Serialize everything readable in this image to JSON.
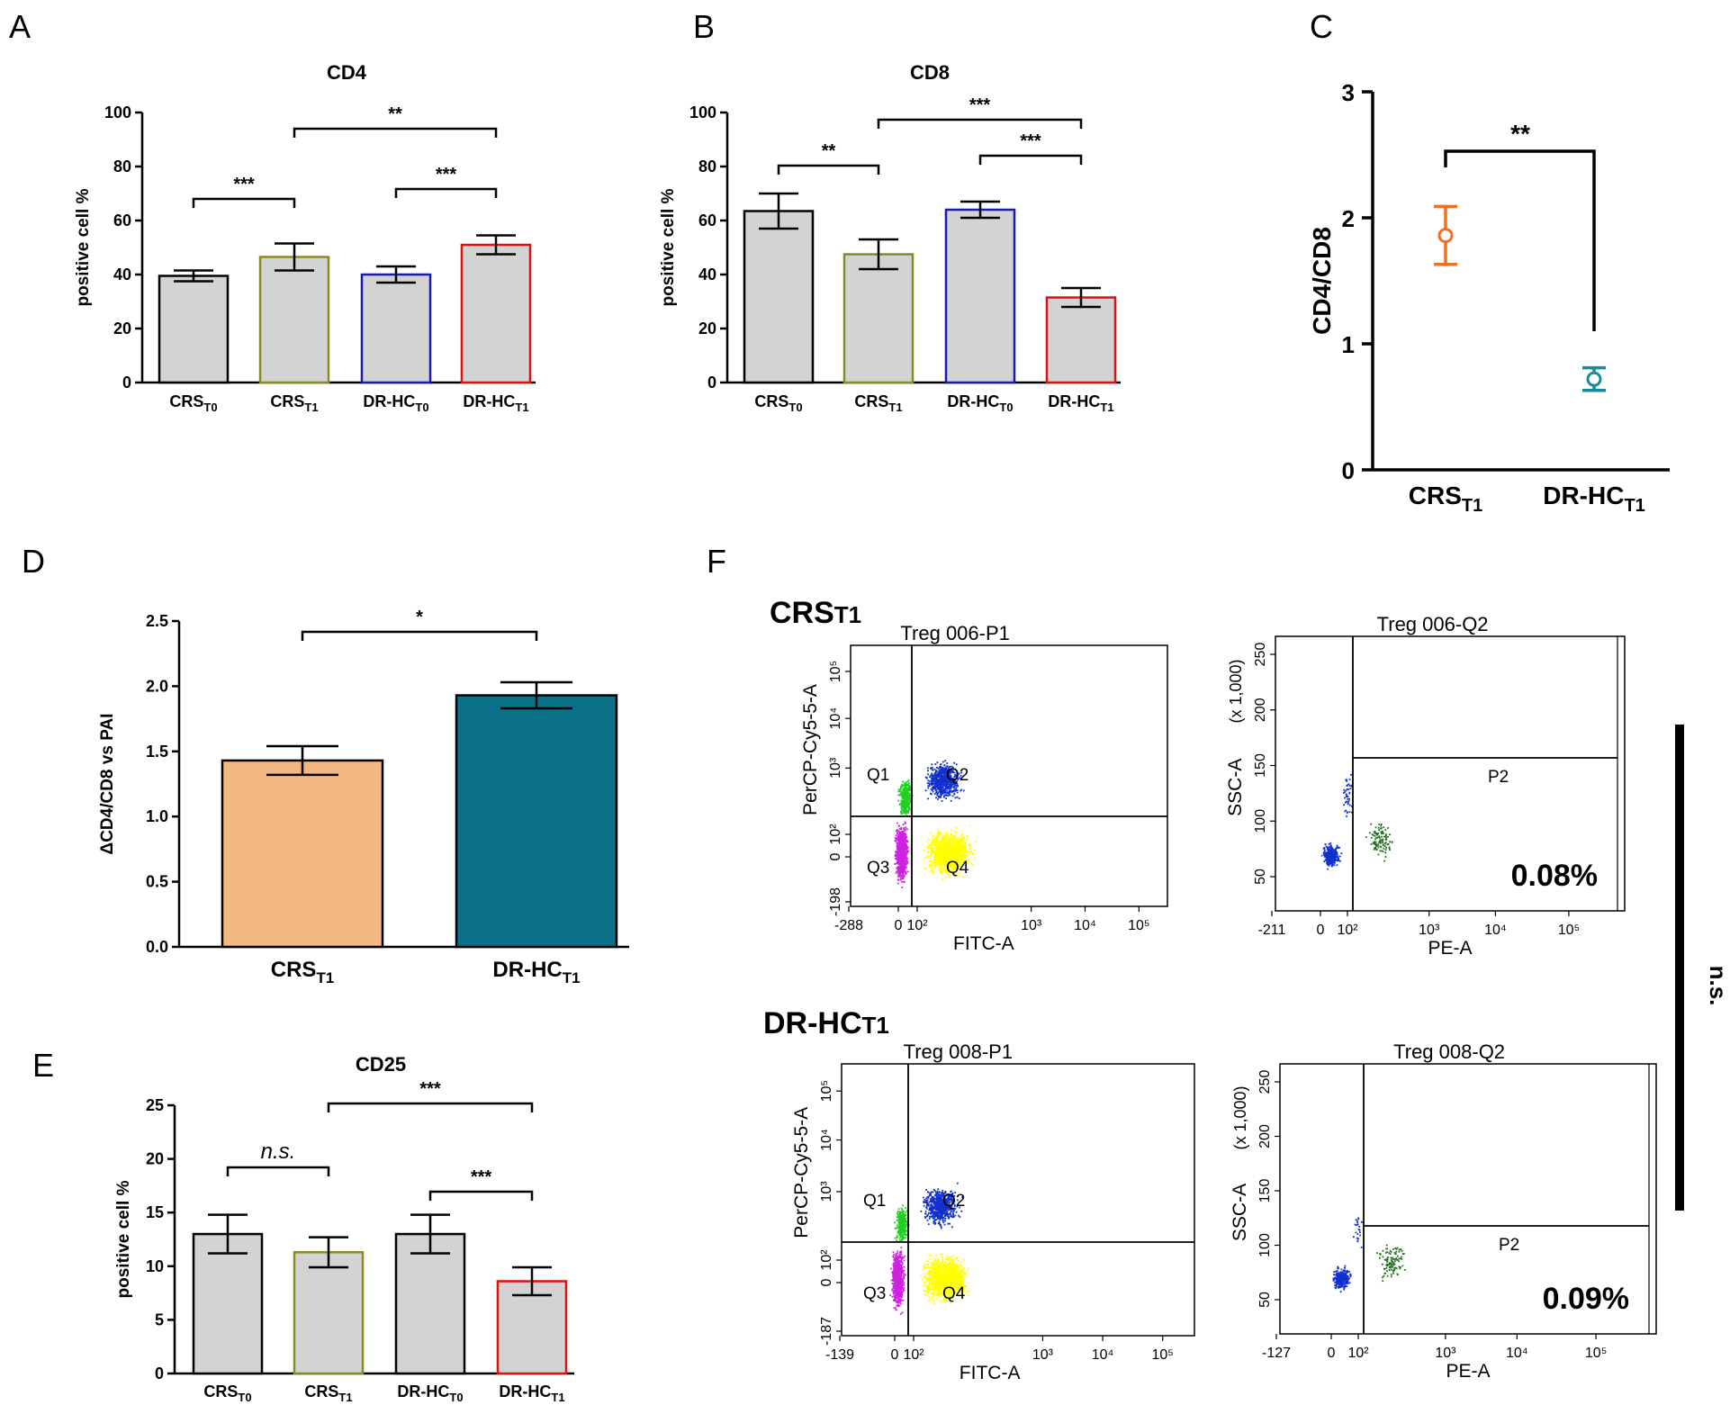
{
  "panel_letters": {
    "A": "A",
    "B": "B",
    "C": "C",
    "D": "D",
    "E": "E",
    "F": "F"
  },
  "chart_data": [
    {
      "id": "A",
      "type": "bar",
      "title": "CD4",
      "ylabel": "positive cell %",
      "ylim": [
        0,
        100
      ],
      "yticks": [
        "0",
        "20",
        "40",
        "60",
        "80",
        "100"
      ],
      "categories": [
        {
          "main": "CRS",
          "sub": "T0"
        },
        {
          "main": "CRS",
          "sub": "T1"
        },
        {
          "main": "DR-HC",
          "sub": "T0"
        },
        {
          "main": "DR-HC",
          "sub": "T1"
        }
      ],
      "values": [
        39.5,
        46.5,
        40,
        51
      ],
      "errors": [
        2,
        5,
        3,
        3.5
      ],
      "colors": {
        "fill": "#d3d3d3",
        "edges": [
          "#000000",
          "#8a8a23",
          "#1a1ab0",
          "#e01010"
        ]
      },
      "significance": [
        {
          "from": 0,
          "to": 1,
          "label": "***"
        },
        {
          "from": 2,
          "to": 3,
          "label": "***"
        },
        {
          "from": 1,
          "to": 3,
          "label": "**"
        }
      ]
    },
    {
      "id": "B",
      "type": "bar",
      "title": "CD8",
      "ylabel": "positive cell %",
      "ylim": [
        0,
        100
      ],
      "yticks": [
        "0",
        "20",
        "40",
        "60",
        "80",
        "100"
      ],
      "categories": [
        {
          "main": "CRS",
          "sub": "T0"
        },
        {
          "main": "CRS",
          "sub": "T1"
        },
        {
          "main": "DR-HC",
          "sub": "T0"
        },
        {
          "main": "DR-HC",
          "sub": "T1"
        }
      ],
      "values": [
        63.5,
        47.5,
        64,
        31.5
      ],
      "errors": [
        6.5,
        5.5,
        3,
        3.5
      ],
      "colors": {
        "fill": "#d3d3d3",
        "edges": [
          "#000000",
          "#8a8a23",
          "#1a1ab0",
          "#e01010"
        ]
      },
      "significance": [
        {
          "from": 0,
          "to": 1,
          "label": "**"
        },
        {
          "from": 2,
          "to": 3,
          "label": "***"
        },
        {
          "from": 1,
          "to": 3,
          "label": "***"
        }
      ]
    },
    {
      "id": "C",
      "type": "scatter",
      "ylabel": "CD4/CD8",
      "ylim": [
        0,
        3
      ],
      "yticks": [
        "0",
        "1",
        "2",
        "3"
      ],
      "categories": [
        {
          "main": "CRS",
          "sub": "T1"
        },
        {
          "main": "DR-HC",
          "sub": "T1"
        }
      ],
      "values": [
        1.86,
        0.72
      ],
      "errors": [
        0.23,
        0.09
      ],
      "colors": {
        "points": [
          "#f07020",
          "#1a8a9a"
        ]
      },
      "significance": [
        {
          "from": 0,
          "to": 1,
          "label": "**"
        }
      ]
    },
    {
      "id": "D",
      "type": "bar",
      "ylabel": "ΔCD4/CD8 vs PAI",
      "ylim": [
        0,
        2.5
      ],
      "yticks": [
        "0.0",
        "0.5",
        "1.0",
        "1.5",
        "2.0",
        "2.5"
      ],
      "categories": [
        {
          "main": "CRS",
          "sub": "T1"
        },
        {
          "main": "DR-HC",
          "sub": "T1"
        }
      ],
      "values": [
        1.43,
        1.93
      ],
      "errors": [
        0.11,
        0.1
      ],
      "colors": {
        "fills": [
          "#f2b880",
          "#0b7188"
        ],
        "edge": "#000000"
      },
      "significance": [
        {
          "from": 0,
          "to": 1,
          "label": "*"
        }
      ]
    },
    {
      "id": "E",
      "type": "bar",
      "title": "CD25",
      "ylabel": "positive cell %",
      "ylim": [
        0,
        25
      ],
      "yticks": [
        "0",
        "5",
        "10",
        "15",
        "20",
        "25"
      ],
      "categories": [
        {
          "main": "CRS",
          "sub": "T0"
        },
        {
          "main": "CRS",
          "sub": "T1"
        },
        {
          "main": "DR-HC",
          "sub": "T0"
        },
        {
          "main": "DR-HC",
          "sub": "T1"
        }
      ],
      "values": [
        13,
        11.3,
        13,
        8.6
      ],
      "errors": [
        1.8,
        1.4,
        1.8,
        1.3
      ],
      "colors": {
        "fill": "#d3d3d3",
        "edges": [
          "#000000",
          "#8a8a23",
          "#000000",
          "#e01010"
        ]
      },
      "significance": [
        {
          "from": 0,
          "to": 1,
          "label": "n.s.",
          "italic": true
        },
        {
          "from": 2,
          "to": 3,
          "label": "***"
        },
        {
          "from": 1,
          "to": 3,
          "label": "***"
        }
      ]
    }
  ],
  "flow": {
    "groups": [
      {
        "label_main": "CRS",
        "label_sub": "T1",
        "left": {
          "title": "Treg 006-P1",
          "ylabel": "PerCP-Cy5-5-A",
          "xlabel": "FITC-A",
          "xticks": [
            "-288",
            "0",
            "10²",
            "10³",
            "10⁴",
            "10⁵"
          ],
          "yticks": [
            "-198",
            "0",
            "10²",
            "10³",
            "10⁴",
            "10⁵"
          ],
          "quadrants": [
            "Q1",
            "Q2",
            "Q3",
            "Q4"
          ]
        },
        "right": {
          "title": "Treg 006-Q2",
          "ylabel": "SSC-A",
          "yunit": "(x 1,000)",
          "xlabel": "PE-A",
          "xticks": [
            "-211",
            "0",
            "10²",
            "10³",
            "10⁴",
            "10⁵"
          ],
          "yticks": [
            "50",
            "100",
            "150",
            "200",
            "250"
          ],
          "gate": "P2",
          "percent": "0.08%"
        }
      },
      {
        "label_main": "DR-HC",
        "label_sub": "T1",
        "left": {
          "title": "Treg 008-P1",
          "ylabel": "PerCP-Cy5-5-A",
          "xlabel": "FITC-A",
          "xticks": [
            "-139",
            "0",
            "10²",
            "10³",
            "10⁴",
            "10⁵"
          ],
          "yticks": [
            "-187",
            "0",
            "10²",
            "10³",
            "10⁴",
            "10⁵"
          ],
          "quadrants": [
            "Q1",
            "Q2",
            "Q3",
            "Q4"
          ]
        },
        "right": {
          "title": "Treg 008-Q2",
          "ylabel": "SSC-A",
          "yunit": "(x 1,000)",
          "xlabel": "PE-A",
          "xticks": [
            "-127",
            "0",
            "10²",
            "10³",
            "10⁴",
            "10⁵"
          ],
          "yticks": [
            "50",
            "100",
            "150",
            "200",
            "250"
          ],
          "gate": "P2",
          "percent": "0.09%"
        }
      }
    ],
    "significance_label": "n.s.",
    "dot_colors": {
      "magenta": "#d020e0",
      "yellow": "#ffff00",
      "green": "#20d020",
      "blue": "#1030d0",
      "dark_green": "#207020"
    }
  }
}
